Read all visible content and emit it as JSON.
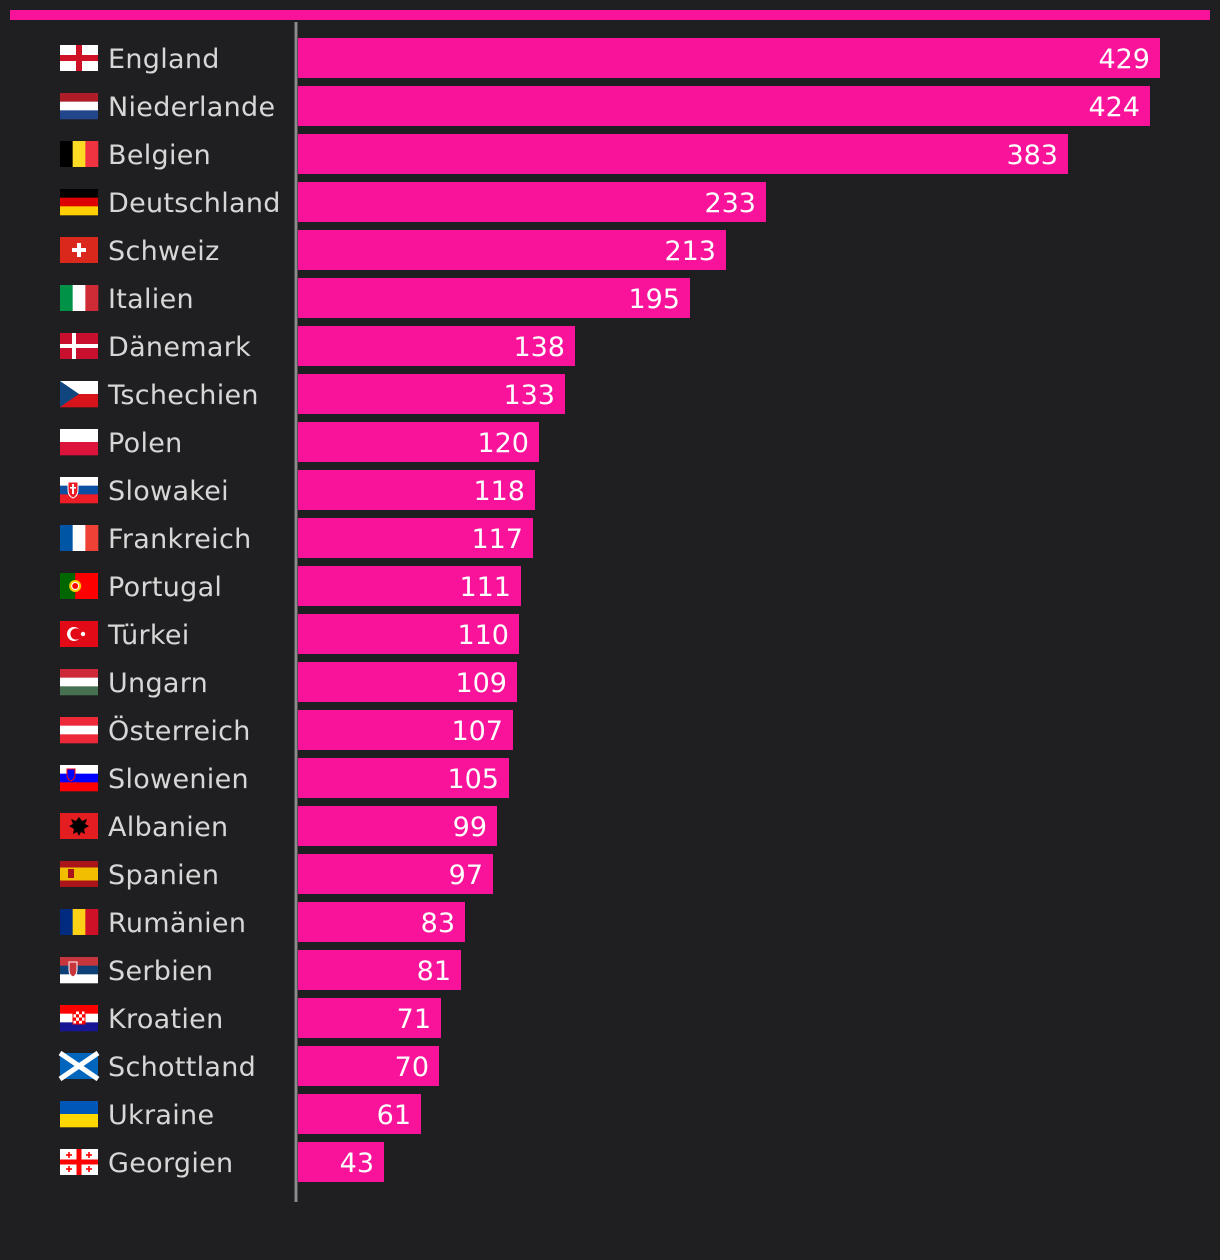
{
  "colors": {
    "background": "#1f1f21",
    "bar": "#f8139a",
    "label": "#d7d7d7",
    "value": "#ffffff",
    "axis": "#8a8a8a"
  },
  "chart_data": {
    "type": "bar",
    "orientation": "horizontal",
    "title": "",
    "xlabel": "",
    "ylabel": "",
    "xlim": [
      0,
      429
    ],
    "grid": false,
    "categories": [
      "England",
      "Niederlande",
      "Belgien",
      "Deutschland",
      "Schweiz",
      "Italien",
      "Dänemark",
      "Tschechien",
      "Polen",
      "Slowakei",
      "Frankreich",
      "Portugal",
      "Türkei",
      "Ungarn",
      "Österreich",
      "Slowenien",
      "Albanien",
      "Spanien",
      "Rumänien",
      "Serbien",
      "Kroatien",
      "Schottland",
      "Ukraine",
      "Georgien"
    ],
    "flags": [
      "flag-england-icon",
      "flag-netherlands-icon",
      "flag-belgium-icon",
      "flag-germany-icon",
      "flag-switzerland-icon",
      "flag-italy-icon",
      "flag-denmark-icon",
      "flag-czechia-icon",
      "flag-poland-icon",
      "flag-slovakia-icon",
      "flag-france-icon",
      "flag-portugal-icon",
      "flag-turkey-icon",
      "flag-hungary-icon",
      "flag-austria-icon",
      "flag-slovenia-icon",
      "flag-albania-icon",
      "flag-spain-icon",
      "flag-romania-icon",
      "flag-serbia-icon",
      "flag-croatia-icon",
      "flag-scotland-icon",
      "flag-ukraine-icon",
      "flag-georgia-icon"
    ],
    "values": [
      429,
      424,
      383,
      233,
      213,
      195,
      138,
      133,
      120,
      118,
      117,
      111,
      110,
      109,
      107,
      105,
      99,
      97,
      83,
      81,
      71,
      70,
      61,
      43
    ]
  }
}
